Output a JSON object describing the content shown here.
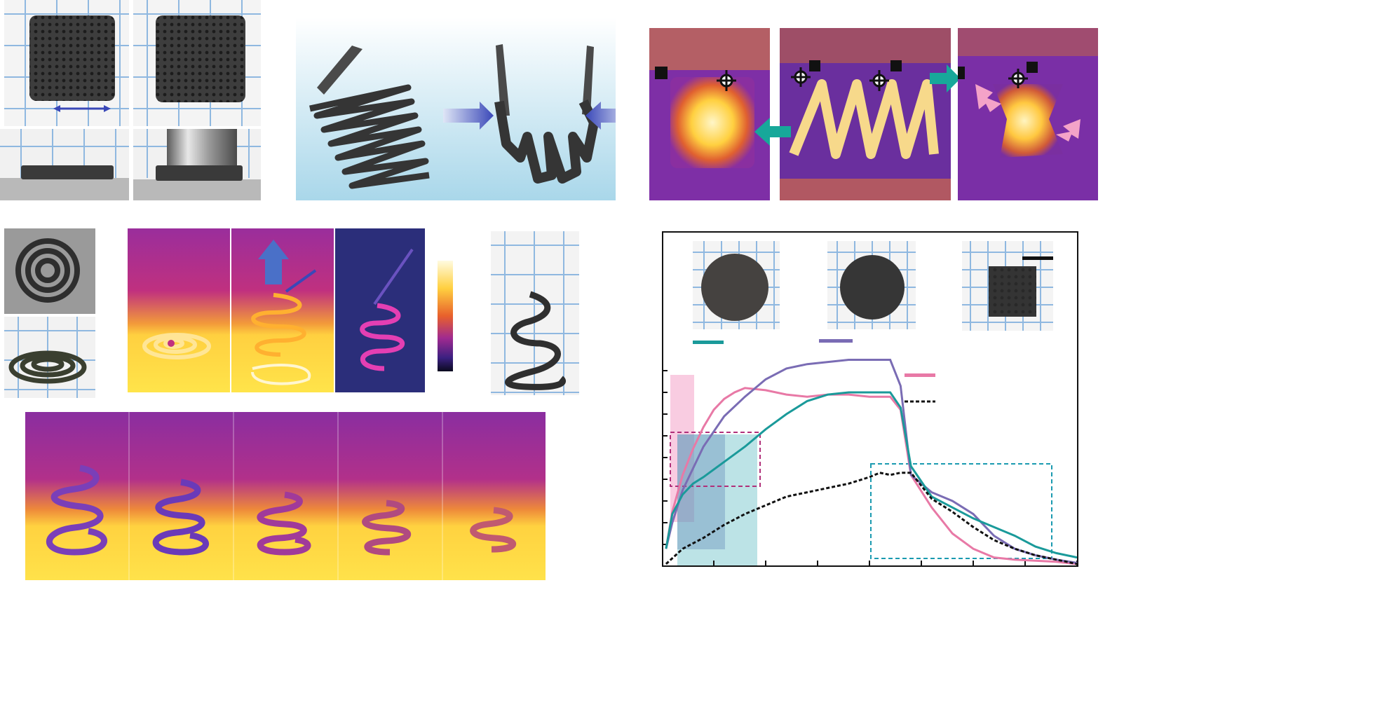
{
  "figure": {
    "colors": {
      "teal": "#1a9a9a",
      "purple": "#7a6cb4",
      "pink": "#e879a6",
      "black": "#111111",
      "arrow_blue": "#3a48b8",
      "arrow_teal": "#17a89a",
      "arrow_pink": "#f4a3c8",
      "grid_blue": "#8fb8e0",
      "sample_dark": "#3b3b3b"
    },
    "icons": [
      "double-arrow-icon",
      "blue-push-arrow-icon",
      "teal-arrow-icon",
      "pink-arrow-icon",
      "crosshair-marker-icon",
      "up-arrow-icon"
    ]
  },
  "chart_data": {
    "type": "line",
    "title": "",
    "xlabel": "",
    "ylabel": "",
    "xlim": [
      0,
      20
    ],
    "ylim": [
      0,
      10
    ],
    "grid": false,
    "legend": "top-right",
    "series": [
      {
        "color": "#e879a6",
        "x": [
          0.2,
          0.5,
          1,
          1.5,
          2,
          2.5,
          3,
          3.5,
          4,
          5,
          6,
          7,
          8,
          9,
          10,
          10.5,
          11,
          11.5,
          12,
          13,
          14,
          15,
          16,
          17,
          18,
          19,
          19.5,
          20
        ],
        "y": [
          0.8,
          2.5,
          4.2,
          5.4,
          6.4,
          7.2,
          7.7,
          8.0,
          8.2,
          8.1,
          7.9,
          7.8,
          7.9,
          7.9,
          7.8,
          7.8,
          7.8,
          7.2,
          4.2,
          2.7,
          1.5,
          0.8,
          0.4,
          0.3,
          0.25,
          0.2,
          0.15,
          0.1
        ]
      },
      {
        "color": "#7a6cb4",
        "x": [
          0.2,
          0.5,
          1,
          1.5,
          2,
          3,
          4,
          5,
          6,
          7,
          8,
          9,
          10,
          10.5,
          11,
          11.5,
          12,
          13,
          14,
          15,
          16,
          17,
          18,
          19,
          20
        ],
        "y": [
          0.8,
          2.0,
          3.5,
          4.5,
          5.5,
          6.9,
          7.8,
          8.6,
          9.1,
          9.3,
          9.4,
          9.5,
          9.5,
          9.5,
          9.5,
          8.3,
          4.2,
          3.4,
          3.0,
          2.4,
          1.4,
          0.8,
          0.5,
          0.3,
          0.15
        ]
      },
      {
        "color": "#1a9a9a",
        "x": [
          0.2,
          0.5,
          1,
          1.5,
          2,
          3,
          4,
          5,
          6,
          7,
          8,
          9,
          10,
          10.5,
          11,
          11.5,
          12,
          13,
          14,
          15,
          16,
          17,
          18,
          19,
          20
        ],
        "y": [
          0.8,
          2.4,
          3.3,
          3.8,
          4.1,
          4.8,
          5.5,
          6.3,
          7.0,
          7.6,
          7.9,
          8.0,
          8.0,
          8.0,
          8.0,
          7.3,
          4.6,
          3.2,
          2.7,
          2.2,
          1.8,
          1.4,
          0.9,
          0.6,
          0.4
        ]
      },
      {
        "color": "#111111",
        "dashed": true,
        "x": [
          0.2,
          1,
          2,
          3,
          4,
          5,
          6,
          7,
          8,
          9,
          10,
          10.5,
          11,
          11.5,
          12,
          13,
          14,
          15,
          16,
          17,
          18,
          19,
          20
        ],
        "y": [
          0.1,
          0.8,
          1.3,
          1.9,
          2.4,
          2.8,
          3.2,
          3.4,
          3.6,
          3.8,
          4.1,
          4.3,
          4.2,
          4.3,
          4.3,
          3.1,
          2.5,
          1.8,
          1.2,
          0.8,
          0.5,
          0.3,
          0.1
        ]
      }
    ]
  }
}
